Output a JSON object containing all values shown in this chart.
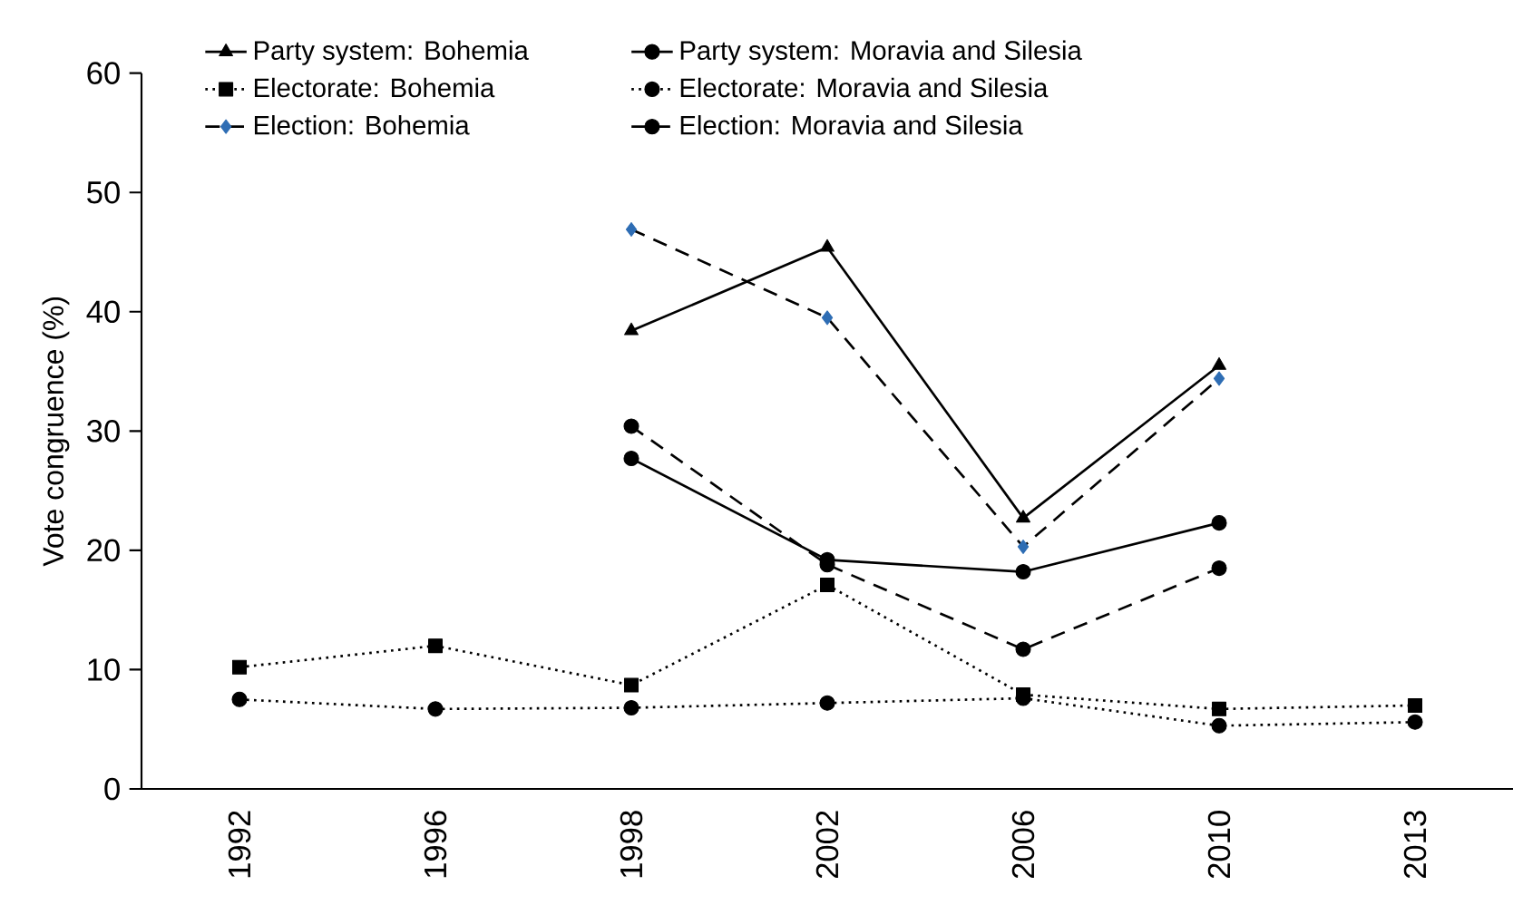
{
  "chart_data": {
    "type": "line",
    "ylabel": "Vote congruence (%)",
    "categories": [
      "1992",
      "1996",
      "1998",
      "2002",
      "2006",
      "2010",
      "2013"
    ],
    "series": [
      {
        "name": "Party system: Bohemia",
        "color": "#000000",
        "marker": "triangle",
        "line_style": "solid",
        "values": [
          null,
          null,
          38.4,
          45.4,
          22.7,
          35.5,
          null
        ]
      },
      {
        "name": "Party system: Moravia and Silesia",
        "color": "#000000",
        "marker": "circle",
        "line_style": "solid",
        "values": [
          null,
          null,
          27.7,
          19.2,
          18.2,
          22.3,
          null
        ]
      },
      {
        "name": "Electorate: Bohemia",
        "color": "#000000",
        "marker": "square",
        "line_style": "dotted",
        "values": [
          10.2,
          12.0,
          8.7,
          17.1,
          7.9,
          6.7,
          7.0
        ]
      },
      {
        "name": "Electorate: Moravia and Silesia",
        "color": "#000000",
        "marker": "circle",
        "line_style": "dotted",
        "values": [
          7.5,
          6.7,
          6.8,
          7.2,
          7.6,
          5.3,
          5.6
        ]
      },
      {
        "name": "Election: Bohemia",
        "color": "#2e6db4",
        "marker": "diamond",
        "line_style": "dashed",
        "values": [
          null,
          null,
          46.9,
          39.5,
          20.3,
          34.4,
          null
        ]
      },
      {
        "name": "Election: Moravia and Silesia",
        "color": "#000000",
        "marker": "circle",
        "line_style": "dashed",
        "values": [
          null,
          null,
          30.4,
          18.8,
          11.7,
          18.5,
          null
        ]
      }
    ],
    "ylim": [
      0,
      60
    ],
    "yticks": [
      0,
      10,
      20,
      30,
      40,
      50,
      60
    ],
    "legend": "top"
  }
}
